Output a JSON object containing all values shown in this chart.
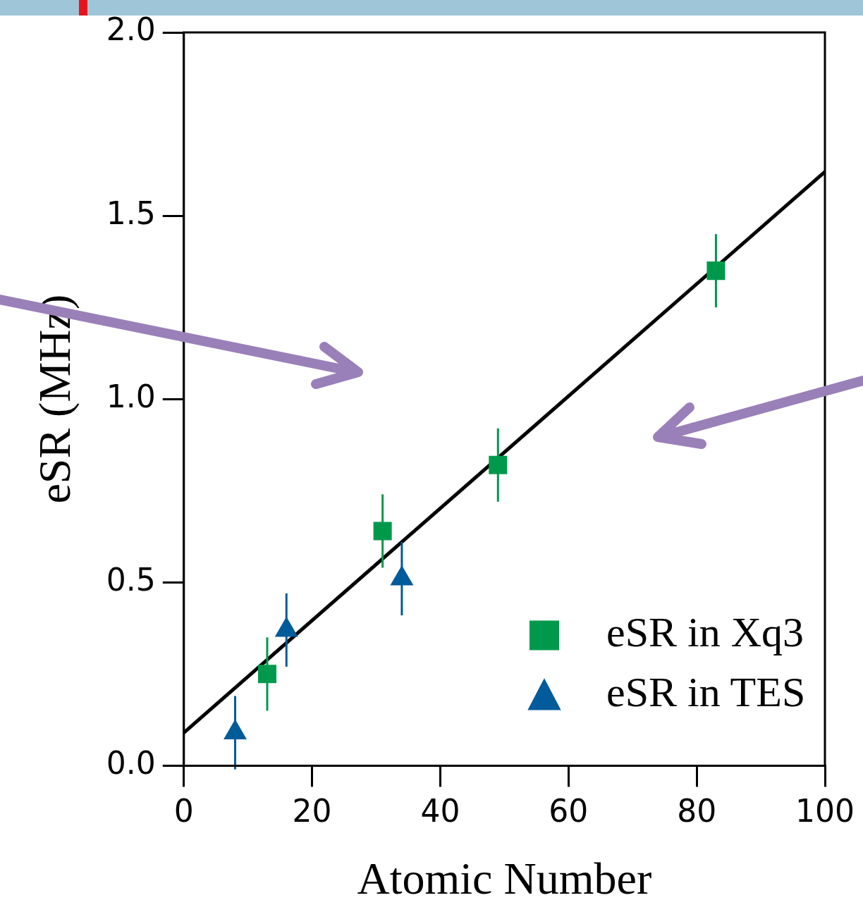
{
  "chart_data": {
    "type": "scatter",
    "xlabel": "Atomic Number",
    "ylabel": "eSR (MHz)",
    "xlim": [
      0,
      100
    ],
    "xticks": [
      0,
      20,
      40,
      60,
      80,
      100
    ],
    "ylim": [
      0,
      2
    ],
    "yticks": [
      {
        "value": 0,
        "label": "0.0"
      },
      {
        "value": 0.5,
        "label": "0.5"
      },
      {
        "value": 1,
        "label": "1.0"
      },
      {
        "value": 1.5,
        "label": "1.5"
      },
      {
        "value": 2,
        "label": "2.0"
      }
    ],
    "grid": false,
    "legend": "bottom right",
    "series": [
      {
        "name": "eSR in Xq3",
        "marker": "square",
        "color": "#00994c",
        "x": [
          13,
          31,
          49,
          83
        ],
        "values": [
          0.25,
          0.64,
          0.82,
          1.35
        ],
        "errors": [
          0.1,
          0.1,
          0.1,
          0.1
        ]
      },
      {
        "name": "eSR in TES",
        "marker": "triangle",
        "color": "#005b9a",
        "x": [
          8,
          16,
          34
        ],
        "values": [
          0.09,
          0.37,
          0.51
        ],
        "errors": [
          0.1,
          0.1,
          0.1
        ]
      },
      {
        "type": "line",
        "color": "#000000",
        "x": [
          0,
          100
        ],
        "values": [
          0.09,
          1.62
        ]
      }
    ]
  }
}
